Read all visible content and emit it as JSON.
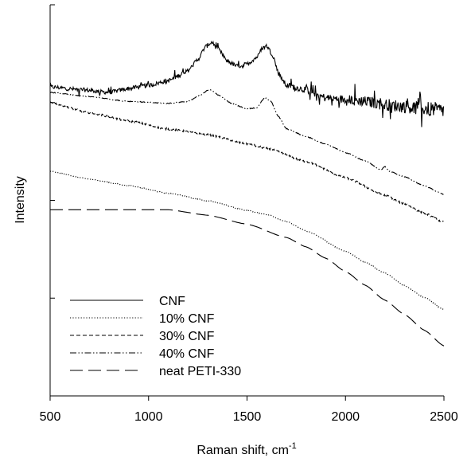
{
  "chart_data": {
    "type": "line",
    "title": "",
    "xlabel": "Raman shift, cm",
    "xlabel_superscript": "-1",
    "ylabel": "Intensity",
    "xlim": [
      500,
      2500
    ],
    "ylim": [
      0,
      100
    ],
    "x_ticks": [
      500,
      1000,
      1500,
      2000,
      2500
    ],
    "y_ticks_shown_labels": false,
    "grid": false,
    "legend_position": "bottom-left",
    "series": [
      {
        "name": "CNF",
        "dash": "solid",
        "noise": 0.9,
        "points": [
          [
            500,
            79
          ],
          [
            650,
            78.3
          ],
          [
            800,
            77.6
          ],
          [
            900,
            78.6
          ],
          [
            1000,
            79.4
          ],
          [
            1100,
            80.6
          ],
          [
            1200,
            83.2
          ],
          [
            1250,
            86
          ],
          [
            1290,
            89.3
          ],
          [
            1320,
            90.4
          ],
          [
            1350,
            88.8
          ],
          [
            1400,
            85.6
          ],
          [
            1450,
            84.3
          ],
          [
            1500,
            84.8
          ],
          [
            1550,
            86.6
          ],
          [
            1580,
            89
          ],
          [
            1600,
            89.5
          ],
          [
            1630,
            87.2
          ],
          [
            1660,
            82.5
          ],
          [
            1700,
            79.4
          ],
          [
            1800,
            78.3
          ],
          [
            1900,
            76.2
          ],
          [
            2000,
            75.8
          ],
          [
            2100,
            75.3
          ],
          [
            2200,
            74.5
          ],
          [
            2300,
            74
          ],
          [
            2400,
            73.5
          ],
          [
            2500,
            73
          ]
        ]
      },
      {
        "name": "10% CNF",
        "dash": "dotted",
        "noise": 0.12,
        "points": [
          [
            500,
            57.4
          ],
          [
            700,
            55.4
          ],
          [
            900,
            53.8
          ],
          [
            1100,
            51.8
          ],
          [
            1300,
            49.9
          ],
          [
            1500,
            47.4
          ],
          [
            1600,
            46.4
          ],
          [
            1700,
            44.6
          ],
          [
            1800,
            42.2
          ],
          [
            2000,
            37
          ],
          [
            2100,
            34.2
          ],
          [
            2200,
            31.4
          ],
          [
            2300,
            28.2
          ],
          [
            2400,
            25.2
          ],
          [
            2500,
            22
          ]
        ]
      },
      {
        "name": "30% CNF",
        "dash": "dashed",
        "noise": 0.25,
        "points": [
          [
            500,
            75
          ],
          [
            700,
            72.4
          ],
          [
            900,
            70.3
          ],
          [
            1100,
            68.2
          ],
          [
            1300,
            66.8
          ],
          [
            1500,
            64.4
          ],
          [
            1600,
            63.3
          ],
          [
            1800,
            59.9
          ],
          [
            2000,
            55.8
          ],
          [
            2200,
            51.3
          ],
          [
            2300,
            49.1
          ],
          [
            2400,
            46.7
          ],
          [
            2500,
            44.4
          ]
        ]
      },
      {
        "name": "40% CNF",
        "dash": "dash-dot-dot",
        "noise": 0.1,
        "points": [
          [
            500,
            77.6
          ],
          [
            700,
            76.5
          ],
          [
            900,
            75.3
          ],
          [
            1100,
            74.8
          ],
          [
            1200,
            75.3
          ],
          [
            1260,
            76.8
          ],
          [
            1310,
            78.4
          ],
          [
            1360,
            76.8
          ],
          [
            1420,
            74.8
          ],
          [
            1500,
            73.4
          ],
          [
            1550,
            73.7
          ],
          [
            1590,
            76.3
          ],
          [
            1620,
            75.4
          ],
          [
            1660,
            71.4
          ],
          [
            1700,
            68.3
          ],
          [
            1800,
            66.3
          ],
          [
            1900,
            64.4
          ],
          [
            2000,
            62.2
          ],
          [
            2100,
            60.1
          ],
          [
            2180,
            57.8
          ],
          [
            2200,
            58.6
          ],
          [
            2220,
            57.5
          ],
          [
            2300,
            56
          ],
          [
            2400,
            53.7
          ],
          [
            2500,
            51.5
          ]
        ]
      },
      {
        "name": "neat PETI-330",
        "dash": "long-dash",
        "noise": 0,
        "points": [
          [
            500,
            47.6
          ],
          [
            800,
            47.6
          ],
          [
            1100,
            47.6
          ],
          [
            1300,
            46.2
          ],
          [
            1500,
            43.9
          ],
          [
            1700,
            40.5
          ],
          [
            1800,
            38.1
          ],
          [
            1900,
            35.2
          ],
          [
            2000,
            31.8
          ],
          [
            2100,
            28.3
          ],
          [
            2200,
            24.5
          ],
          [
            2300,
            20.8
          ],
          [
            2400,
            16.8
          ],
          [
            2500,
            12.8
          ]
        ]
      }
    ]
  }
}
